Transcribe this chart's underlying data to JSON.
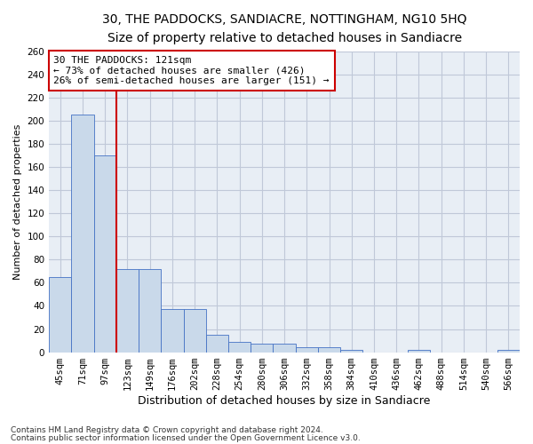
{
  "title": "30, THE PADDOCKS, SANDIACRE, NOTTINGHAM, NG10 5HQ",
  "subtitle": "Size of property relative to detached houses in Sandiacre",
  "xlabel": "Distribution of detached houses by size in Sandiacre",
  "ylabel": "Number of detached properties",
  "bin_labels": [
    "45sqm",
    "71sqm",
    "97sqm",
    "123sqm",
    "149sqm",
    "176sqm",
    "202sqm",
    "228sqm",
    "254sqm",
    "280sqm",
    "306sqm",
    "332sqm",
    "358sqm",
    "384sqm",
    "410sqm",
    "436sqm",
    "462sqm",
    "488sqm",
    "514sqm",
    "540sqm",
    "566sqm"
  ],
  "bar_values": [
    65,
    205,
    170,
    72,
    72,
    37,
    37,
    15,
    9,
    7,
    7,
    4,
    4,
    2,
    0,
    0,
    2,
    0,
    0,
    0,
    2
  ],
  "bar_color": "#c9d9ea",
  "bar_edge_color": "#4472c4",
  "annotation_line1": "30 THE PADDOCKS: 121sqm",
  "annotation_line2": "← 73% of detached houses are smaller (426)",
  "annotation_line3": "26% of semi-detached houses are larger (151) →",
  "annotation_box_color": "#ffffff",
  "annotation_box_edge": "#cc0000",
  "vline_color": "#cc0000",
  "ylim": [
    0,
    260
  ],
  "yticks": [
    0,
    20,
    40,
    60,
    80,
    100,
    120,
    140,
    160,
    180,
    200,
    220,
    240,
    260
  ],
  "footnote1": "Contains HM Land Registry data © Crown copyright and database right 2024.",
  "footnote2": "Contains public sector information licensed under the Open Government Licence v3.0.",
  "bg_color": "#ffffff",
  "plot_bg_color": "#e8eef5",
  "grid_color": "#c0c8d8",
  "title_fontsize": 10,
  "subtitle_fontsize": 9,
  "xlabel_fontsize": 9,
  "ylabel_fontsize": 8,
  "tick_fontsize": 7.5,
  "annotation_fontsize": 8,
  "footnote_fontsize": 6.5
}
